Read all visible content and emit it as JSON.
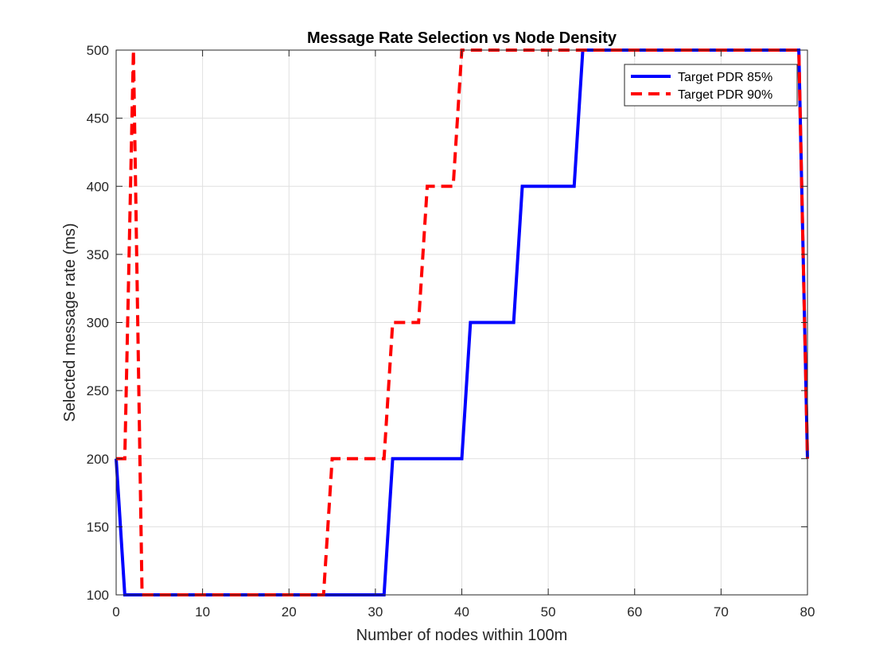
{
  "colors": {
    "background": "#ffffff",
    "axes": "#262626",
    "grid": "#e0e0e0",
    "series_85": "#0000ff",
    "series_90": "#ff0000"
  },
  "chart_data": {
    "type": "line",
    "title": "Message Rate Selection vs Node Density",
    "xlabel": "Number of nodes within 100m",
    "ylabel": "Selected message rate (ms)",
    "xlim": [
      0,
      80
    ],
    "ylim": [
      100,
      500
    ],
    "xticks": [
      0,
      10,
      20,
      30,
      40,
      50,
      60,
      70,
      80
    ],
    "yticks": [
      100,
      150,
      200,
      250,
      300,
      350,
      400,
      450,
      500
    ],
    "grid": true,
    "box": true,
    "legend_position": "top-right",
    "series": [
      {
        "name": "Target PDR 85%",
        "color": "#0000ff",
        "style": "solid",
        "x": [
          0,
          1,
          31,
          32,
          40,
          41,
          46,
          47,
          53,
          54,
          79,
          80
        ],
        "y": [
          200,
          100,
          100,
          200,
          200,
          300,
          300,
          400,
          400,
          500,
          500,
          200
        ]
      },
      {
        "name": "Target PDR 90%",
        "color": "#ff0000",
        "style": "dashed",
        "x": [
          0,
          1,
          2,
          3,
          24,
          25,
          31,
          32,
          35,
          36,
          39,
          40,
          79,
          80
        ],
        "y": [
          200,
          200,
          500,
          100,
          100,
          200,
          200,
          300,
          300,
          400,
          400,
          500,
          500,
          200
        ]
      }
    ]
  }
}
